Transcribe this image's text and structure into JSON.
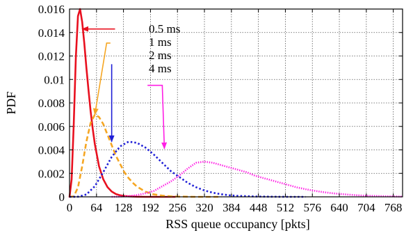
{
  "chart_data": {
    "type": "line",
    "title": "",
    "xlabel": "RSS queue occupancy [pkts]",
    "ylabel": "PDF",
    "xlim": [
      0,
      790
    ],
    "ylim": [
      0,
      0.016
    ],
    "xticks": [
      "0",
      "64",
      "128",
      "192",
      "256",
      "320",
      "384",
      "448",
      "512",
      "576",
      "640",
      "704",
      "768"
    ],
    "yticks": [
      "0",
      "0.002",
      "0.004",
      "0.006",
      "0.008",
      "0.01",
      "0.012",
      "0.014",
      "0.016"
    ],
    "grid": true,
    "series": [
      {
        "name": "0.5 ms",
        "color": "#e8101f",
        "dash": "solid",
        "x": [
          0,
          5,
          10,
          15,
          20,
          25,
          30,
          35,
          40,
          45,
          50,
          55,
          60,
          70,
          80,
          90,
          100,
          110,
          120,
          130,
          140,
          160,
          180,
          200,
          220,
          250
        ],
        "y": [
          0,
          0.0015,
          0.0062,
          0.0119,
          0.0154,
          0.016,
          0.0149,
          0.0131,
          0.011,
          0.0091,
          0.0073,
          0.0058,
          0.0045,
          0.0026,
          0.0015,
          0.00083,
          0.00045,
          0.00024,
          0.00013,
          7e-05,
          4e-05,
          1e-05,
          0,
          0,
          0,
          0
        ]
      },
      {
        "name": "1 ms",
        "color": "#f5a623",
        "dash": "dashed",
        "x": [
          0,
          10,
          20,
          30,
          40,
          50,
          60,
          70,
          80,
          90,
          100,
          110,
          120,
          130,
          140,
          150,
          160,
          180,
          200,
          220,
          240,
          260,
          280,
          300,
          320,
          340,
          360
        ],
        "y": [
          0,
          4e-05,
          0.0008,
          0.0026,
          0.0047,
          0.0063,
          0.007,
          0.0068,
          0.0062,
          0.0053,
          0.0044,
          0.0035,
          0.0028,
          0.0021,
          0.0016,
          0.0012,
          0.00087,
          0.00044,
          0.00021,
          0.0001,
          4e-05,
          2e-05,
          1e-05,
          0,
          0,
          0,
          0
        ]
      },
      {
        "name": "2 ms",
        "color": "#1f1fd6",
        "dash": "dotted",
        "x": [
          0,
          20,
          40,
          60,
          80,
          100,
          120,
          140,
          160,
          180,
          200,
          220,
          240,
          260,
          280,
          300,
          320,
          340,
          360,
          380,
          400,
          440,
          480,
          520,
          560
        ],
        "y": [
          0,
          1e-05,
          0.0002,
          0.0009,
          0.0021,
          0.0034,
          0.0043,
          0.0047,
          0.0046,
          0.0042,
          0.0036,
          0.0029,
          0.0022,
          0.0017,
          0.0012,
          0.00082,
          0.00054,
          0.00035,
          0.00022,
          0.00013,
          8e-05,
          3e-05,
          1e-05,
          0,
          0
        ]
      },
      {
        "name": "4 ms",
        "color": "#ff1fe4",
        "dash": "fine-dotted",
        "x": [
          100,
          120,
          140,
          160,
          180,
          200,
          220,
          240,
          260,
          280,
          300,
          320,
          340,
          360,
          380,
          400,
          420,
          440,
          460,
          480,
          500,
          520,
          540,
          560,
          580,
          600,
          620,
          640,
          660,
          680,
          700,
          720,
          740,
          760,
          780,
          790
        ],
        "y": [
          0,
          2e-05,
          6e-05,
          0.00015,
          0.0003,
          0.0005,
          0.0009,
          0.0013,
          0.0018,
          0.0024,
          0.0029,
          0.003,
          0.0029,
          0.0027,
          0.0025,
          0.0023,
          0.0021,
          0.0018,
          0.0016,
          0.0014,
          0.0012,
          0.001,
          0.0008,
          0.00065,
          0.00052,
          0.00041,
          0.00032,
          0.00025,
          0.00019,
          0.00014,
          0.0001,
          8e-05,
          6e-05,
          4e-05,
          3e-05,
          2e-05
        ]
      }
    ],
    "annotations": [
      {
        "label": "0.5 ms",
        "color": "#e8101f",
        "target": [
          30,
          0.0143
        ],
        "path": [
          [
            108,
            0.0143
          ],
          [
            30,
            0.0143
          ]
        ]
      },
      {
        "label": "1 ms",
        "color": "#f5a623",
        "target": [
          60,
          0.007
        ],
        "path": [
          [
            97,
            0.0131
          ],
          [
            88,
            0.0131
          ],
          [
            60,
            0.007
          ]
        ]
      },
      {
        "label": "2 ms",
        "color": "#1f1fd6",
        "target": [
          100,
          0.0047
        ],
        "path": [
          [
            100,
            0.0113
          ],
          [
            100,
            0.0047
          ]
        ]
      },
      {
        "label": "4 ms",
        "color": "#ff1fe4",
        "target": [
          225,
          0.0041
        ],
        "path": [
          [
            185,
            0.0095
          ],
          [
            220,
            0.0095
          ],
          [
            225,
            0.0041
          ]
        ]
      }
    ]
  }
}
